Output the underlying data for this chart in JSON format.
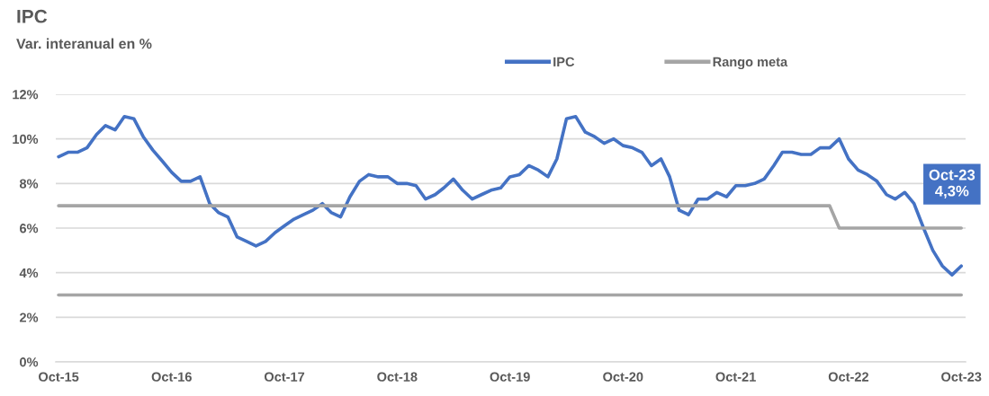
{
  "chart_data": {
    "type": "line",
    "title": "IPC",
    "subtitle": "Var. interanual en %",
    "x": [
      "2015-10",
      "2015-11",
      "2015-12",
      "2016-01",
      "2016-02",
      "2016-03",
      "2016-04",
      "2016-05",
      "2016-06",
      "2016-07",
      "2016-08",
      "2016-09",
      "2016-10",
      "2016-11",
      "2016-12",
      "2017-01",
      "2017-02",
      "2017-03",
      "2017-04",
      "2017-05",
      "2017-06",
      "2017-07",
      "2017-08",
      "2017-09",
      "2017-10",
      "2017-11",
      "2017-12",
      "2018-01",
      "2018-02",
      "2018-03",
      "2018-04",
      "2018-05",
      "2018-06",
      "2018-07",
      "2018-08",
      "2018-09",
      "2018-10",
      "2018-11",
      "2018-12",
      "2019-01",
      "2019-02",
      "2019-03",
      "2019-04",
      "2019-05",
      "2019-06",
      "2019-07",
      "2019-08",
      "2019-09",
      "2019-10",
      "2019-11",
      "2019-12",
      "2020-01",
      "2020-02",
      "2020-03",
      "2020-04",
      "2020-05",
      "2020-06",
      "2020-07",
      "2020-08",
      "2020-09",
      "2020-10",
      "2020-11",
      "2020-12",
      "2021-01",
      "2021-02",
      "2021-03",
      "2021-04",
      "2021-05",
      "2021-06",
      "2021-07",
      "2021-08",
      "2021-09",
      "2021-10",
      "2021-11",
      "2021-12",
      "2022-01",
      "2022-02",
      "2022-03",
      "2022-04",
      "2022-05",
      "2022-06",
      "2022-07",
      "2022-08",
      "2022-09",
      "2022-10",
      "2022-11",
      "2022-12",
      "2023-01",
      "2023-02",
      "2023-03",
      "2023-04",
      "2023-05",
      "2023-06",
      "2023-07",
      "2023-08",
      "2023-09",
      "2023-10"
    ],
    "series": [
      {
        "name": "IPC",
        "color": "#4472c4",
        "values": [
          9.2,
          9.4,
          9.4,
          9.6,
          10.2,
          10.6,
          10.4,
          11.0,
          10.9,
          10.1,
          9.5,
          9.0,
          8.5,
          8.1,
          8.1,
          8.3,
          7.1,
          6.7,
          6.5,
          5.6,
          5.4,
          5.2,
          5.4,
          5.8,
          6.1,
          6.4,
          6.6,
          6.8,
          7.1,
          6.7,
          6.5,
          7.4,
          8.1,
          8.4,
          8.3,
          8.3,
          8.0,
          8.0,
          7.9,
          7.3,
          7.5,
          7.8,
          8.2,
          7.7,
          7.3,
          7.5,
          7.7,
          7.8,
          8.3,
          8.4,
          8.8,
          8.6,
          8.3,
          9.1,
          10.9,
          11.0,
          10.3,
          10.1,
          9.8,
          10.0,
          9.7,
          9.6,
          9.4,
          8.8,
          9.1,
          8.3,
          6.8,
          6.6,
          7.3,
          7.3,
          7.6,
          7.4,
          7.9,
          7.9,
          8.0,
          8.2,
          8.8,
          9.4,
          9.4,
          9.3,
          9.3,
          9.6,
          9.6,
          10.0,
          9.1,
          8.6,
          8.4,
          8.1,
          7.5,
          7.3,
          7.6,
          7.1,
          6.0,
          5.0,
          4.3,
          3.9,
          4.3
        ]
      },
      {
        "name": "Rango meta",
        "color": "#a5a5a5",
        "values": [
          7,
          7,
          7,
          7,
          7,
          7,
          7,
          7,
          7,
          7,
          7,
          7,
          7,
          7,
          7,
          7,
          7,
          7,
          7,
          7,
          7,
          7,
          7,
          7,
          7,
          7,
          7,
          7,
          7,
          7,
          7,
          7,
          7,
          7,
          7,
          7,
          7,
          7,
          7,
          7,
          7,
          7,
          7,
          7,
          7,
          7,
          7,
          7,
          7,
          7,
          7,
          7,
          7,
          7,
          7,
          7,
          7,
          7,
          7,
          7,
          7,
          7,
          7,
          7,
          7,
          7,
          7,
          7,
          7,
          7,
          7,
          7,
          7,
          7,
          7,
          7,
          7,
          7,
          7,
          7,
          7,
          7,
          7,
          6,
          6,
          6,
          6,
          6,
          6,
          6,
          6,
          6,
          6,
          6,
          6,
          6,
          6
        ]
      },
      {
        "color": "#a5a5a5",
        "values": [
          3,
          3,
          3,
          3,
          3,
          3,
          3,
          3,
          3,
          3,
          3,
          3,
          3,
          3,
          3,
          3,
          3,
          3,
          3,
          3,
          3,
          3,
          3,
          3,
          3,
          3,
          3,
          3,
          3,
          3,
          3,
          3,
          3,
          3,
          3,
          3,
          3,
          3,
          3,
          3,
          3,
          3,
          3,
          3,
          3,
          3,
          3,
          3,
          3,
          3,
          3,
          3,
          3,
          3,
          3,
          3,
          3,
          3,
          3,
          3,
          3,
          3,
          3,
          3,
          3,
          3,
          3,
          3,
          3,
          3,
          3,
          3,
          3,
          3,
          3,
          3,
          3,
          3,
          3,
          3,
          3,
          3,
          3,
          3,
          3,
          3,
          3,
          3,
          3,
          3,
          3,
          3,
          3,
          3,
          3,
          3,
          3
        ]
      }
    ],
    "annotations": [
      "Oct-23\n4,3%"
    ],
    "xlim": [
      "2015-09-22",
      "2023-10-15"
    ],
    "xticks": [
      {
        "value": "2015-10",
        "label": "Oct-15"
      },
      {
        "value": "2016-10",
        "label": "Oct-16"
      },
      {
        "value": "2017-10",
        "label": "Oct-17"
      },
      {
        "value": "2018-10",
        "label": "Oct-18"
      },
      {
        "value": "2019-10",
        "label": "Oct-19"
      },
      {
        "value": "2020-10",
        "label": "Oct-20"
      },
      {
        "value": "2021-10",
        "label": "Oct-21"
      },
      {
        "value": "2022-10",
        "label": "Oct-22"
      },
      {
        "value": "2023-10",
        "label": "Oct-23"
      }
    ],
    "ylim": [
      0,
      12
    ],
    "yticks": [
      {
        "value": 0,
        "label": "0%"
      },
      {
        "value": 2,
        "label": "2%"
      },
      {
        "value": 4,
        "label": "4%"
      },
      {
        "value": 6,
        "label": "6%"
      },
      {
        "value": 8,
        "label": "8%"
      },
      {
        "value": 10,
        "label": "10%"
      },
      {
        "value": 12,
        "label": "12%"
      }
    ],
    "grid": "y",
    "legend": "top"
  }
}
